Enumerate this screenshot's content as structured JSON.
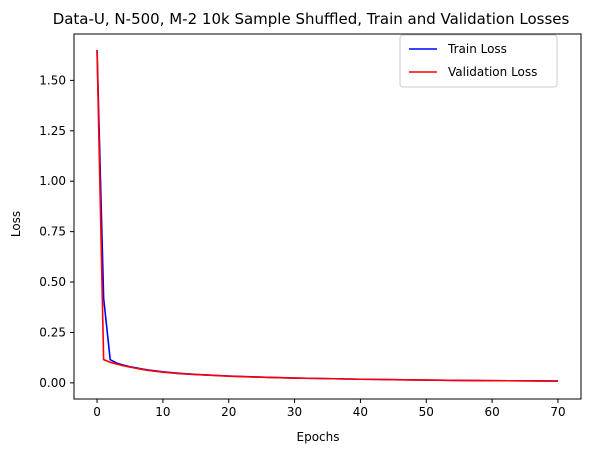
{
  "chart_data": {
    "type": "line",
    "title": "Data-U, N-500, M-2 10k Sample Shuffled, Train and Validation Losses",
    "xlabel": "Epochs",
    "ylabel": "Loss",
    "xlim": [
      -3.5,
      73.5
    ],
    "ylim": [
      -0.08,
      1.73
    ],
    "xticks": [
      0,
      10,
      20,
      30,
      40,
      50,
      60,
      70
    ],
    "xtick_labels": [
      "0",
      "10",
      "20",
      "30",
      "40",
      "50",
      "60",
      "70"
    ],
    "yticks": [
      0.0,
      0.25,
      0.5,
      0.75,
      1.0,
      1.25,
      1.5
    ],
    "ytick_labels": [
      "0.00",
      "0.25",
      "0.50",
      "0.75",
      "1.00",
      "1.25",
      "1.50"
    ],
    "grid": false,
    "legend_position": "upper-right",
    "series": [
      {
        "name": "Train Loss",
        "color": "#0000ff",
        "x": [
          0,
          1,
          2,
          3,
          4,
          5,
          6,
          7,
          8,
          10,
          12,
          15,
          20,
          25,
          30,
          35,
          40,
          45,
          50,
          55,
          60,
          65,
          70
        ],
        "y": [
          1.65,
          0.42,
          0.115,
          0.098,
          0.088,
          0.08,
          0.074,
          0.068,
          0.063,
          0.055,
          0.049,
          0.042,
          0.034,
          0.028,
          0.024,
          0.021,
          0.018,
          0.016,
          0.014,
          0.012,
          0.011,
          0.01,
          0.009
        ]
      },
      {
        "name": "Validation Loss",
        "color": "#ff0000",
        "x": [
          0,
          1,
          2,
          3,
          4,
          5,
          6,
          7,
          8,
          10,
          12,
          15,
          20,
          25,
          30,
          35,
          40,
          45,
          50,
          55,
          60,
          65,
          70
        ],
        "y": [
          1.65,
          0.115,
          0.102,
          0.093,
          0.085,
          0.078,
          0.072,
          0.066,
          0.061,
          0.053,
          0.047,
          0.041,
          0.033,
          0.028,
          0.024,
          0.021,
          0.018,
          0.016,
          0.014,
          0.012,
          0.011,
          0.01,
          0.009
        ]
      }
    ]
  }
}
